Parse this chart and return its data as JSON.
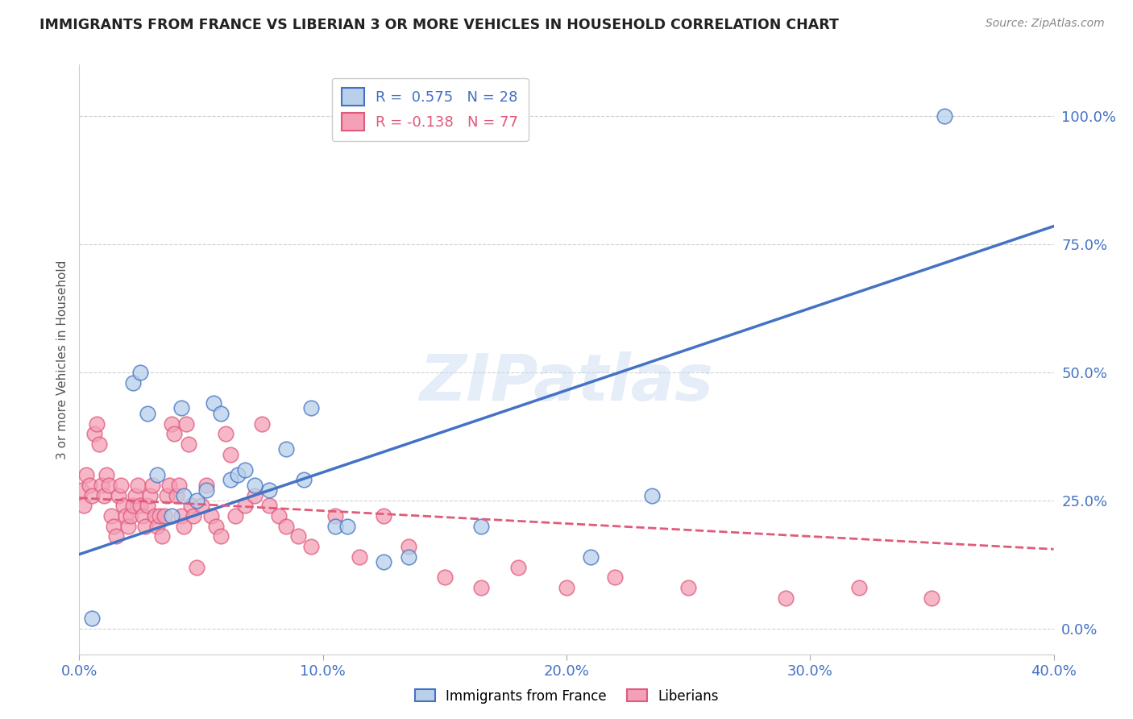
{
  "title": "IMMIGRANTS FROM FRANCE VS LIBERIAN 3 OR MORE VEHICLES IN HOUSEHOLD CORRELATION CHART",
  "source": "Source: ZipAtlas.com",
  "ylabel": "3 or more Vehicles in Household",
  "xlim": [
    0.0,
    0.4
  ],
  "ylim": [
    -0.05,
    1.1
  ],
  "france_color": "#b8d0ea",
  "liberia_color": "#f4a0b8",
  "france_line_color": "#4472c4",
  "liberia_line_color": "#e05a7a",
  "france_R": 0.575,
  "france_N": 28,
  "liberia_R": -0.138,
  "liberia_N": 77,
  "france_x": [
    0.005,
    0.022,
    0.025,
    0.028,
    0.032,
    0.038,
    0.042,
    0.043,
    0.048,
    0.052,
    0.055,
    0.058,
    0.062,
    0.065,
    0.068,
    0.072,
    0.078,
    0.085,
    0.092,
    0.095,
    0.105,
    0.11,
    0.125,
    0.135,
    0.165,
    0.21,
    0.235,
    0.355
  ],
  "france_y": [
    0.02,
    0.48,
    0.5,
    0.42,
    0.3,
    0.22,
    0.43,
    0.26,
    0.25,
    0.27,
    0.44,
    0.42,
    0.29,
    0.3,
    0.31,
    0.28,
    0.27,
    0.35,
    0.29,
    0.43,
    0.2,
    0.2,
    0.13,
    0.14,
    0.2,
    0.14,
    0.26,
    1.0
  ],
  "liberia_x": [
    0.001,
    0.002,
    0.003,
    0.004,
    0.005,
    0.006,
    0.007,
    0.008,
    0.009,
    0.01,
    0.011,
    0.012,
    0.013,
    0.014,
    0.015,
    0.016,
    0.017,
    0.018,
    0.019,
    0.02,
    0.021,
    0.022,
    0.023,
    0.024,
    0.025,
    0.026,
    0.027,
    0.028,
    0.029,
    0.03,
    0.031,
    0.032,
    0.033,
    0.034,
    0.035,
    0.036,
    0.037,
    0.038,
    0.039,
    0.04,
    0.041,
    0.042,
    0.043,
    0.044,
    0.045,
    0.046,
    0.047,
    0.048,
    0.05,
    0.052,
    0.054,
    0.056,
    0.058,
    0.06,
    0.062,
    0.064,
    0.068,
    0.072,
    0.075,
    0.078,
    0.082,
    0.085,
    0.09,
    0.095,
    0.105,
    0.115,
    0.125,
    0.135,
    0.15,
    0.165,
    0.18,
    0.2,
    0.22,
    0.25,
    0.29,
    0.32,
    0.35
  ],
  "liberia_y": [
    0.27,
    0.24,
    0.3,
    0.28,
    0.26,
    0.38,
    0.4,
    0.36,
    0.28,
    0.26,
    0.3,
    0.28,
    0.22,
    0.2,
    0.18,
    0.26,
    0.28,
    0.24,
    0.22,
    0.2,
    0.22,
    0.24,
    0.26,
    0.28,
    0.24,
    0.22,
    0.2,
    0.24,
    0.26,
    0.28,
    0.22,
    0.2,
    0.22,
    0.18,
    0.22,
    0.26,
    0.28,
    0.4,
    0.38,
    0.26,
    0.28,
    0.22,
    0.2,
    0.4,
    0.36,
    0.24,
    0.22,
    0.12,
    0.24,
    0.28,
    0.22,
    0.2,
    0.18,
    0.38,
    0.34,
    0.22,
    0.24,
    0.26,
    0.4,
    0.24,
    0.22,
    0.2,
    0.18,
    0.16,
    0.22,
    0.14,
    0.22,
    0.16,
    0.1,
    0.08,
    0.12,
    0.08,
    0.1,
    0.08,
    0.06,
    0.08,
    0.06
  ],
  "france_line_x0": 0.0,
  "france_line_y0": 0.145,
  "france_line_x1": 0.4,
  "france_line_y1": 0.785,
  "liberia_line_x0": 0.0,
  "liberia_line_y0": 0.255,
  "liberia_line_x1": 0.4,
  "liberia_line_y1": 0.155,
  "watermark": "ZIPatlas",
  "background_color": "#ffffff",
  "grid_color": "#cccccc"
}
